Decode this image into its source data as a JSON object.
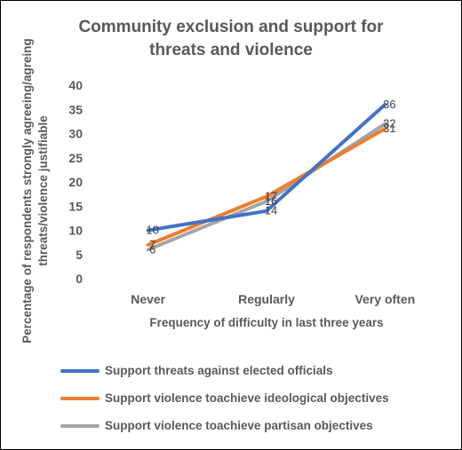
{
  "chart_data": {
    "type": "line",
    "title_lines": [
      "Community exclusion and support for",
      "threats and violence"
    ],
    "xlabel": "Frequency of  difficulty in last three years",
    "ylabel_lines": [
      "Percentage of respondents strongly agreeing/agreing",
      "threats/violence justifiable"
    ],
    "categories": [
      "Never",
      "Regularly",
      "Very often"
    ],
    "ylim": [
      0,
      40
    ],
    "yticks": [
      0,
      5,
      10,
      15,
      20,
      25,
      30,
      35,
      40
    ],
    "grid": false,
    "legend_position": "bottom",
    "series": [
      {
        "name": "Support threats against elected officials",
        "values": [
          10,
          14,
          36
        ],
        "color": "#4472C4"
      },
      {
        "name": "Support violence toachieve ideological objectives",
        "values": [
          7,
          17,
          31
        ],
        "color": "#ED7D31"
      },
      {
        "name": "Support violence toachieve partisan objectives",
        "values": [
          6,
          16,
          32
        ],
        "color": "#A5A5A5"
      }
    ]
  }
}
